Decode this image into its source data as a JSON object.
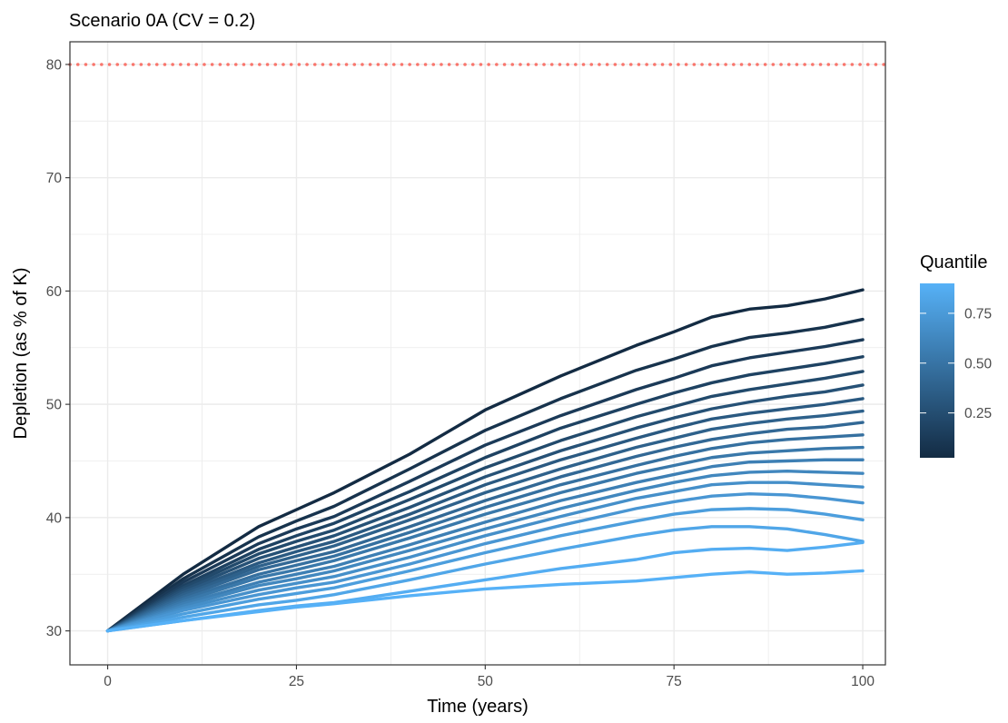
{
  "chart_data": {
    "type": "line",
    "title": "Scenario 0A (CV = 0.2)",
    "xlabel": "Time (years)",
    "ylabel": "Depletion (as % of K)",
    "xlim": [
      -5,
      103
    ],
    "ylim": [
      27,
      82
    ],
    "x_ticks": [
      "0",
      "25",
      "50",
      "75",
      "100"
    ],
    "y_ticks": [
      "30",
      "40",
      "50",
      "60",
      "70",
      "80"
    ],
    "grid": true,
    "reference_line": {
      "y": 80,
      "style": "dotted",
      "color": "#f8766d"
    },
    "legend": {
      "title": "Quantile",
      "position": "right",
      "ticks": [
        "0.75",
        "0.50",
        "0.25"
      ],
      "tick_values": [
        0.75,
        0.5,
        0.25
      ],
      "range": [
        0.025,
        0.9
      ],
      "color_low": "#132b43",
      "color_high": "#56b1f7"
    },
    "x": [
      0,
      10,
      20,
      25,
      30,
      40,
      50,
      60,
      70,
      75,
      80,
      85,
      90,
      95,
      100
    ],
    "series": [
      {
        "quantile": 0.025,
        "values": [
          30,
          35,
          39.2,
          40.7,
          42.2,
          45.6,
          49.5,
          52.5,
          55.2,
          56.4,
          57.7,
          58.4,
          58.7,
          59.3,
          60.1
        ]
      },
      {
        "quantile": 0.075,
        "values": [
          30,
          34.6,
          38.3,
          39.7,
          41,
          44.3,
          47.7,
          50.5,
          53,
          54,
          55.1,
          55.9,
          56.3,
          56.8,
          57.5
        ]
      },
      {
        "quantile": 0.125,
        "values": [
          30,
          34.3,
          37.7,
          39,
          40.1,
          43.2,
          46.4,
          49,
          51.3,
          52.3,
          53.4,
          54.1,
          54.6,
          55.1,
          55.7
        ]
      },
      {
        "quantile": 0.175,
        "values": [
          30,
          34,
          37.2,
          38.4,
          39.5,
          42.3,
          45.3,
          47.9,
          50,
          51,
          51.9,
          52.6,
          53.1,
          53.6,
          54.2
        ]
      },
      {
        "quantile": 0.225,
        "values": [
          30,
          33.8,
          36.8,
          37.9,
          38.9,
          41.6,
          44.4,
          46.8,
          48.9,
          49.8,
          50.7,
          51.3,
          51.8,
          52.3,
          52.9
        ]
      },
      {
        "quantile": 0.275,
        "values": [
          30,
          33.6,
          36.4,
          37.4,
          38.4,
          40.9,
          43.6,
          45.9,
          47.9,
          48.8,
          49.6,
          50.2,
          50.7,
          51.1,
          51.7
        ]
      },
      {
        "quantile": 0.325,
        "values": [
          30,
          33.4,
          36,
          37,
          37.9,
          40.3,
          42.9,
          45.1,
          47,
          47.9,
          48.7,
          49.2,
          49.6,
          50,
          50.5
        ]
      },
      {
        "quantile": 0.375,
        "values": [
          30,
          33.2,
          35.7,
          36.6,
          37.5,
          39.8,
          42.2,
          44.3,
          46.2,
          47,
          47.8,
          48.3,
          48.7,
          49,
          49.4
        ]
      },
      {
        "quantile": 0.425,
        "values": [
          30,
          33,
          35.4,
          36.2,
          37,
          39.2,
          41.5,
          43.6,
          45.4,
          46.2,
          46.9,
          47.4,
          47.8,
          48,
          48.4
        ]
      },
      {
        "quantile": 0.475,
        "values": [
          30,
          32.8,
          35,
          35.8,
          36.6,
          38.7,
          40.9,
          42.9,
          44.6,
          45.4,
          46.1,
          46.6,
          46.9,
          47.1,
          47.3
        ]
      },
      {
        "quantile": 0.525,
        "values": [
          30,
          32.6,
          34.7,
          35.4,
          36.2,
          38.2,
          40.3,
          42.2,
          43.9,
          44.6,
          45.3,
          45.7,
          45.9,
          46.1,
          46.2
        ]
      },
      {
        "quantile": 0.575,
        "values": [
          30,
          32.4,
          34.3,
          35,
          35.7,
          37.6,
          39.6,
          41.5,
          43.1,
          43.8,
          44.5,
          44.9,
          45,
          45.1,
          45.1
        ]
      },
      {
        "quantile": 0.625,
        "values": [
          30,
          32.2,
          34,
          34.6,
          35.3,
          37.1,
          39,
          40.8,
          42.4,
          43.1,
          43.7,
          44,
          44.1,
          44,
          43.9
        ]
      },
      {
        "quantile": 0.675,
        "values": [
          30,
          32,
          33.6,
          34.2,
          34.8,
          36.5,
          38.4,
          40.1,
          41.7,
          42.3,
          42.9,
          43.1,
          43.1,
          42.9,
          42.7
        ]
      },
      {
        "quantile": 0.725,
        "values": [
          30,
          31.8,
          33.2,
          33.8,
          34.3,
          35.9,
          37.7,
          39.3,
          40.8,
          41.4,
          41.9,
          42.1,
          42,
          41.7,
          41.3
        ]
      },
      {
        "quantile": 0.775,
        "values": [
          30,
          31.5,
          32.8,
          33.3,
          33.8,
          35.3,
          36.9,
          38.4,
          39.7,
          40.3,
          40.7,
          40.8,
          40.7,
          40.3,
          39.8
        ]
      },
      {
        "quantile": 0.825,
        "values": [
          30,
          31.2,
          32.3,
          32.7,
          33.2,
          34.5,
          35.9,
          37.2,
          38.4,
          38.9,
          39.2,
          39.2,
          39,
          38.5,
          37.9
        ]
      },
      {
        "quantile": 0.875,
        "values": [
          30,
          30.9,
          31.8,
          32.2,
          32.5,
          33.5,
          34.5,
          35.5,
          36.3,
          36.9,
          37.2,
          37.3,
          37.1,
          37.4,
          37.8
        ]
      },
      {
        "quantile": 0.925,
        "values": [
          30,
          30.9,
          31.7,
          32.1,
          32.4,
          33.1,
          33.7,
          34.1,
          34.4,
          34.7,
          35,
          35.2,
          35,
          35.1,
          35.3
        ]
      }
    ]
  }
}
